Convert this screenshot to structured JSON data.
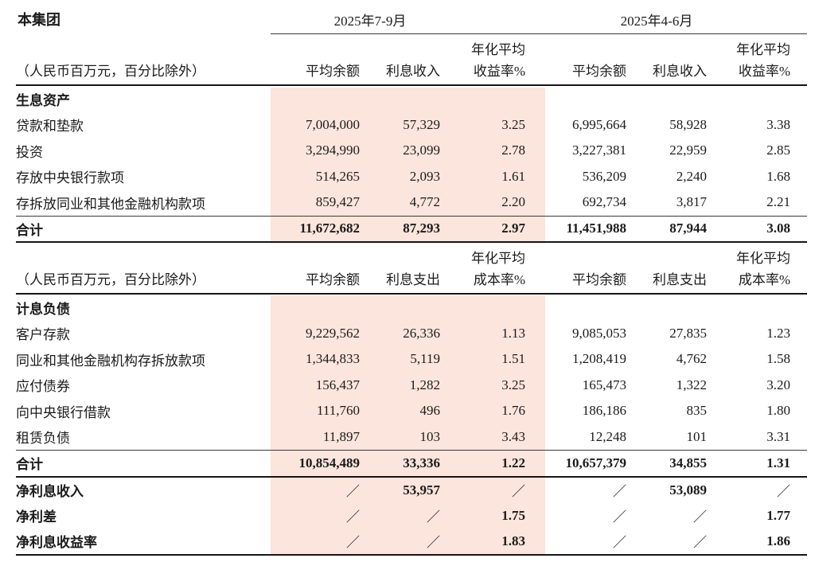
{
  "title": "本集团",
  "unit_note": "（人民币百万元，百分比除外）",
  "periods": {
    "p1": "2025年7-9月",
    "p2": "2025年4-6月"
  },
  "annualized_label": "年化平均",
  "slash": "／",
  "accent_color": "#fce5dc",
  "table1": {
    "col_headers": {
      "avg": "平均余额",
      "interest": "利息收入",
      "rate": "收益率%"
    },
    "section_label": "生息资产",
    "rows": [
      {
        "label": "贷款和垫款",
        "values": [
          "7,004,000",
          "57,329",
          "3.25",
          "6,995,664",
          "58,928",
          "3.38"
        ]
      },
      {
        "label": "投资",
        "values": [
          "3,294,990",
          "23,099",
          "2.78",
          "3,227,381",
          "22,959",
          "2.85"
        ]
      },
      {
        "label": "存放中央银行款项",
        "values": [
          "514,265",
          "2,093",
          "1.61",
          "536,209",
          "2,240",
          "1.68"
        ]
      },
      {
        "label": "存拆放同业和其他金融机构款项",
        "values": [
          "859,427",
          "4,772",
          "2.20",
          "692,734",
          "3,817",
          "2.21"
        ]
      }
    ],
    "total": {
      "label": "合计",
      "values": [
        "11,672,682",
        "87,293",
        "2.97",
        "11,451,988",
        "87,944",
        "3.08"
      ]
    }
  },
  "table2": {
    "col_headers": {
      "avg": "平均余额",
      "interest": "利息支出",
      "rate": "成本率%"
    },
    "section_label": "计息负债",
    "rows": [
      {
        "label": "客户存款",
        "values": [
          "9,229,562",
          "26,336",
          "1.13",
          "9,085,053",
          "27,835",
          "1.23"
        ]
      },
      {
        "label": "同业和其他金融机构存拆放款项",
        "values": [
          "1,344,833",
          "5,119",
          "1.51",
          "1,208,419",
          "4,762",
          "1.58"
        ]
      },
      {
        "label": "应付债券",
        "values": [
          "156,437",
          "1,282",
          "3.25",
          "165,473",
          "1,322",
          "3.20"
        ]
      },
      {
        "label": "向中央银行借款",
        "values": [
          "111,760",
          "496",
          "1.76",
          "186,186",
          "835",
          "1.80"
        ]
      },
      {
        "label": "租赁负债",
        "values": [
          "11,897",
          "103",
          "3.43",
          "12,248",
          "101",
          "3.31"
        ]
      }
    ],
    "total": {
      "label": "合计",
      "values": [
        "10,854,489",
        "33,336",
        "1.22",
        "10,657,379",
        "34,855",
        "1.31"
      ]
    }
  },
  "summary": [
    {
      "label": "净利息收入",
      "values": [
        "／",
        "53,957",
        "／",
        "／",
        "53,089",
        "／"
      ]
    },
    {
      "label": "净利差",
      "values": [
        "／",
        "／",
        "1.75",
        "／",
        "／",
        "1.77"
      ]
    },
    {
      "label": "净利息收益率",
      "values": [
        "／",
        "／",
        "1.83",
        "／",
        "／",
        "1.86"
      ]
    }
  ]
}
